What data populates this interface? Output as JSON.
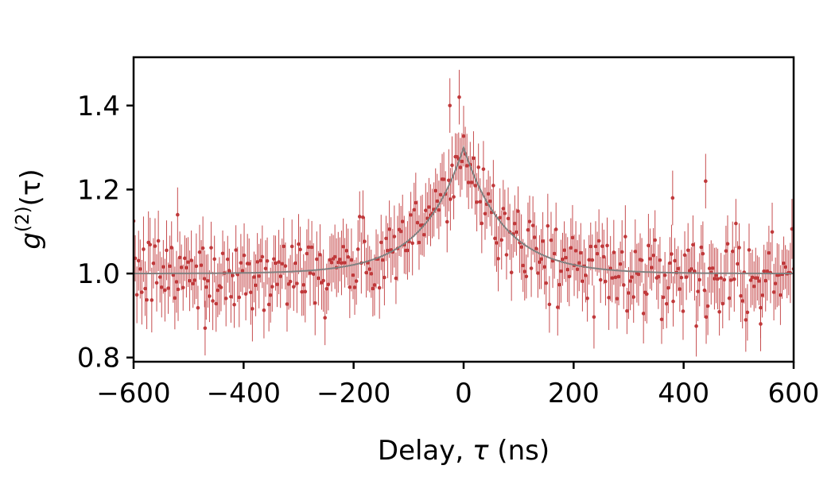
{
  "chart_data": {
    "type": "scatter",
    "title": "",
    "xlabel": "Delay, τ (ns)",
    "ylabel": "g(2)(τ)",
    "ylabel_parts": {
      "base": "g",
      "sup": "(2)",
      "arg": "(τ)"
    },
    "xlabel_parts": {
      "pre": "Delay, ",
      "sym": "τ",
      "post": " (ns)"
    },
    "xlim": [
      -600,
      600
    ],
    "ylim": [
      0.79,
      1.515
    ],
    "xticks": [
      -600,
      -400,
      -200,
      0,
      200,
      400,
      600
    ],
    "xtick_labels": [
      "−600",
      "−400",
      "−200",
      "0",
      "200",
      "400",
      "600"
    ],
    "yticks": [
      0.8,
      1.0,
      1.2,
      1.4
    ],
    "ytick_labels": [
      "0.8",
      "1.0",
      "1.2",
      "1.4"
    ],
    "grid": false,
    "series": [
      {
        "kind": "measured",
        "marker": "dot with vertical error bars",
        "color": "#c0393b",
        "x_range": [
          -600,
          600
        ],
        "x_step": 3,
        "baseline": 1.0,
        "peak_value": 1.3,
        "peak_at": 0,
        "typical_error": 0.065,
        "notable_points": [
          {
            "x": -8,
            "y": 1.42
          },
          {
            "x": -25,
            "y": 1.4
          },
          {
            "x": -520,
            "y": 1.14
          },
          {
            "x": 440,
            "y": 1.22
          },
          {
            "x": 380,
            "y": 1.18
          },
          {
            "x": -470,
            "y": 0.87
          },
          {
            "x": 540,
            "y": 0.88
          }
        ]
      },
      {
        "kind": "fit",
        "style": "line",
        "color": "#808080",
        "model": "1 + A·exp(−|τ|/t0)",
        "A": 0.3,
        "t0_ns": 75
      }
    ]
  }
}
